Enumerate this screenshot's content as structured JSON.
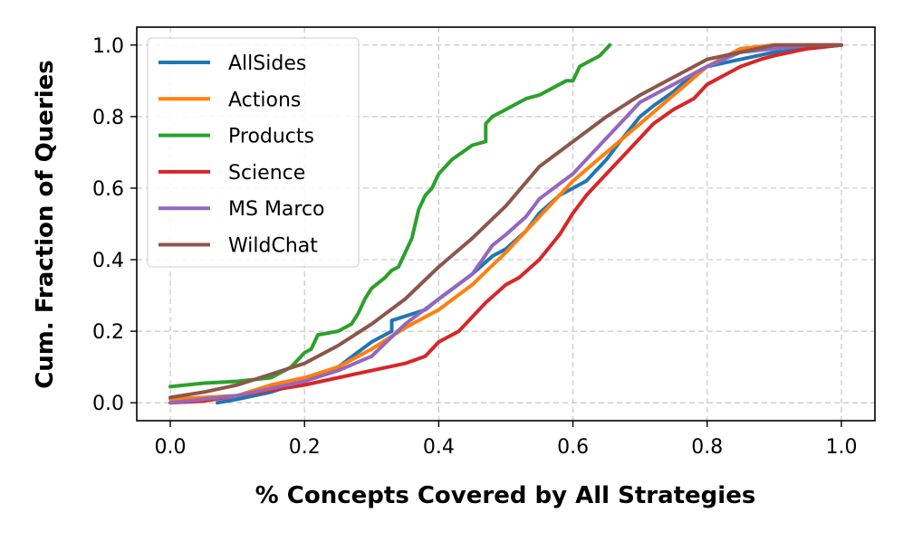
{
  "chart_data": {
    "type": "line",
    "title": "",
    "xlabel": "% Concepts Covered by All Strategies",
    "ylabel": "Cum. Fraction of Queries",
    "xlim": [
      -0.05,
      1.05
    ],
    "ylim": [
      -0.05,
      1.05
    ],
    "xticks": [
      0.0,
      0.2,
      0.4,
      0.6,
      0.8,
      1.0
    ],
    "yticks": [
      0.0,
      0.2,
      0.4,
      0.6,
      0.8,
      1.0
    ],
    "xtick_labels": [
      "0.0",
      "0.2",
      "0.4",
      "0.6",
      "0.8",
      "1.0"
    ],
    "ytick_labels": [
      "0.0",
      "0.2",
      "0.4",
      "0.6",
      "0.8",
      "1.0"
    ],
    "grid": true,
    "legend_position": "top-left",
    "series": [
      {
        "name": "AllSides",
        "color": "#1f77b4",
        "x": [
          0.07,
          0.1,
          0.15,
          0.2,
          0.25,
          0.3,
          0.33,
          0.33,
          0.38,
          0.4,
          0.45,
          0.48,
          0.5,
          0.53,
          0.55,
          0.58,
          0.6,
          0.62,
          0.65,
          0.67,
          0.7,
          0.72,
          0.75,
          0.78,
          0.8,
          0.85,
          0.9,
          0.95,
          1.0
        ],
        "y": [
          0.0,
          0.01,
          0.03,
          0.06,
          0.1,
          0.17,
          0.2,
          0.23,
          0.26,
          0.29,
          0.36,
          0.41,
          0.43,
          0.48,
          0.53,
          0.58,
          0.6,
          0.62,
          0.68,
          0.73,
          0.8,
          0.83,
          0.87,
          0.92,
          0.94,
          0.96,
          0.98,
          0.99,
          1.0
        ]
      },
      {
        "name": "Actions",
        "color": "#ff7f0e",
        "x": [
          0.0,
          0.05,
          0.1,
          0.15,
          0.2,
          0.25,
          0.3,
          0.35,
          0.4,
          0.45,
          0.5,
          0.55,
          0.6,
          0.65,
          0.7,
          0.75,
          0.8,
          0.85,
          0.9,
          0.95,
          1.0
        ],
        "y": [
          0.01,
          0.015,
          0.02,
          0.05,
          0.07,
          0.1,
          0.15,
          0.21,
          0.26,
          0.33,
          0.42,
          0.52,
          0.62,
          0.7,
          0.78,
          0.86,
          0.94,
          0.99,
          1.0,
          1.0,
          1.0
        ]
      },
      {
        "name": "Products",
        "color": "#2ca02c",
        "x": [
          0.0,
          0.05,
          0.1,
          0.15,
          0.18,
          0.2,
          0.21,
          0.22,
          0.25,
          0.27,
          0.28,
          0.29,
          0.3,
          0.32,
          0.33,
          0.34,
          0.35,
          0.36,
          0.37,
          0.38,
          0.39,
          0.4,
          0.42,
          0.45,
          0.47,
          0.47,
          0.48,
          0.5,
          0.53,
          0.55,
          0.57,
          0.59,
          0.6,
          0.61,
          0.62,
          0.64,
          0.65,
          0.655
        ],
        "y": [
          0.045,
          0.055,
          0.06,
          0.07,
          0.1,
          0.14,
          0.15,
          0.19,
          0.2,
          0.22,
          0.25,
          0.29,
          0.32,
          0.35,
          0.37,
          0.38,
          0.42,
          0.46,
          0.54,
          0.58,
          0.6,
          0.64,
          0.68,
          0.72,
          0.73,
          0.78,
          0.8,
          0.82,
          0.85,
          0.86,
          0.88,
          0.9,
          0.9,
          0.94,
          0.95,
          0.97,
          0.99,
          1.0
        ]
      },
      {
        "name": "Science",
        "color": "#d62728",
        "x": [
          0.0,
          0.05,
          0.1,
          0.15,
          0.2,
          0.25,
          0.3,
          0.35,
          0.38,
          0.4,
          0.43,
          0.45,
          0.47,
          0.5,
          0.52,
          0.55,
          0.58,
          0.6,
          0.62,
          0.65,
          0.68,
          0.7,
          0.72,
          0.75,
          0.78,
          0.8,
          0.83,
          0.85,
          0.88,
          0.9,
          0.95,
          1.0
        ],
        "y": [
          0.0,
          0.005,
          0.02,
          0.035,
          0.05,
          0.07,
          0.09,
          0.11,
          0.13,
          0.17,
          0.2,
          0.24,
          0.28,
          0.33,
          0.35,
          0.4,
          0.47,
          0.53,
          0.58,
          0.64,
          0.7,
          0.74,
          0.78,
          0.82,
          0.85,
          0.89,
          0.92,
          0.94,
          0.96,
          0.97,
          0.99,
          1.0
        ]
      },
      {
        "name": "MS Marco",
        "color": "#9467bd",
        "x": [
          0.0,
          0.05,
          0.1,
          0.15,
          0.2,
          0.25,
          0.3,
          0.35,
          0.4,
          0.45,
          0.48,
          0.5,
          0.53,
          0.55,
          0.6,
          0.63,
          0.65,
          0.68,
          0.7,
          0.75,
          0.8,
          0.85,
          0.9,
          0.95,
          1.0
        ],
        "y": [
          0.0,
          0.01,
          0.02,
          0.04,
          0.06,
          0.09,
          0.13,
          0.22,
          0.29,
          0.36,
          0.44,
          0.47,
          0.52,
          0.57,
          0.64,
          0.7,
          0.74,
          0.8,
          0.84,
          0.89,
          0.94,
          0.98,
          0.99,
          1.0,
          1.0
        ]
      },
      {
        "name": "WildChat",
        "color": "#8c564b",
        "x": [
          0.0,
          0.05,
          0.1,
          0.15,
          0.2,
          0.25,
          0.3,
          0.35,
          0.4,
          0.45,
          0.5,
          0.55,
          0.6,
          0.65,
          0.7,
          0.75,
          0.8,
          0.85,
          0.9,
          0.95,
          1.0
        ],
        "y": [
          0.015,
          0.03,
          0.05,
          0.08,
          0.11,
          0.16,
          0.22,
          0.29,
          0.38,
          0.46,
          0.55,
          0.66,
          0.73,
          0.8,
          0.86,
          0.91,
          0.96,
          0.98,
          1.0,
          1.0,
          1.0
        ]
      }
    ]
  }
}
